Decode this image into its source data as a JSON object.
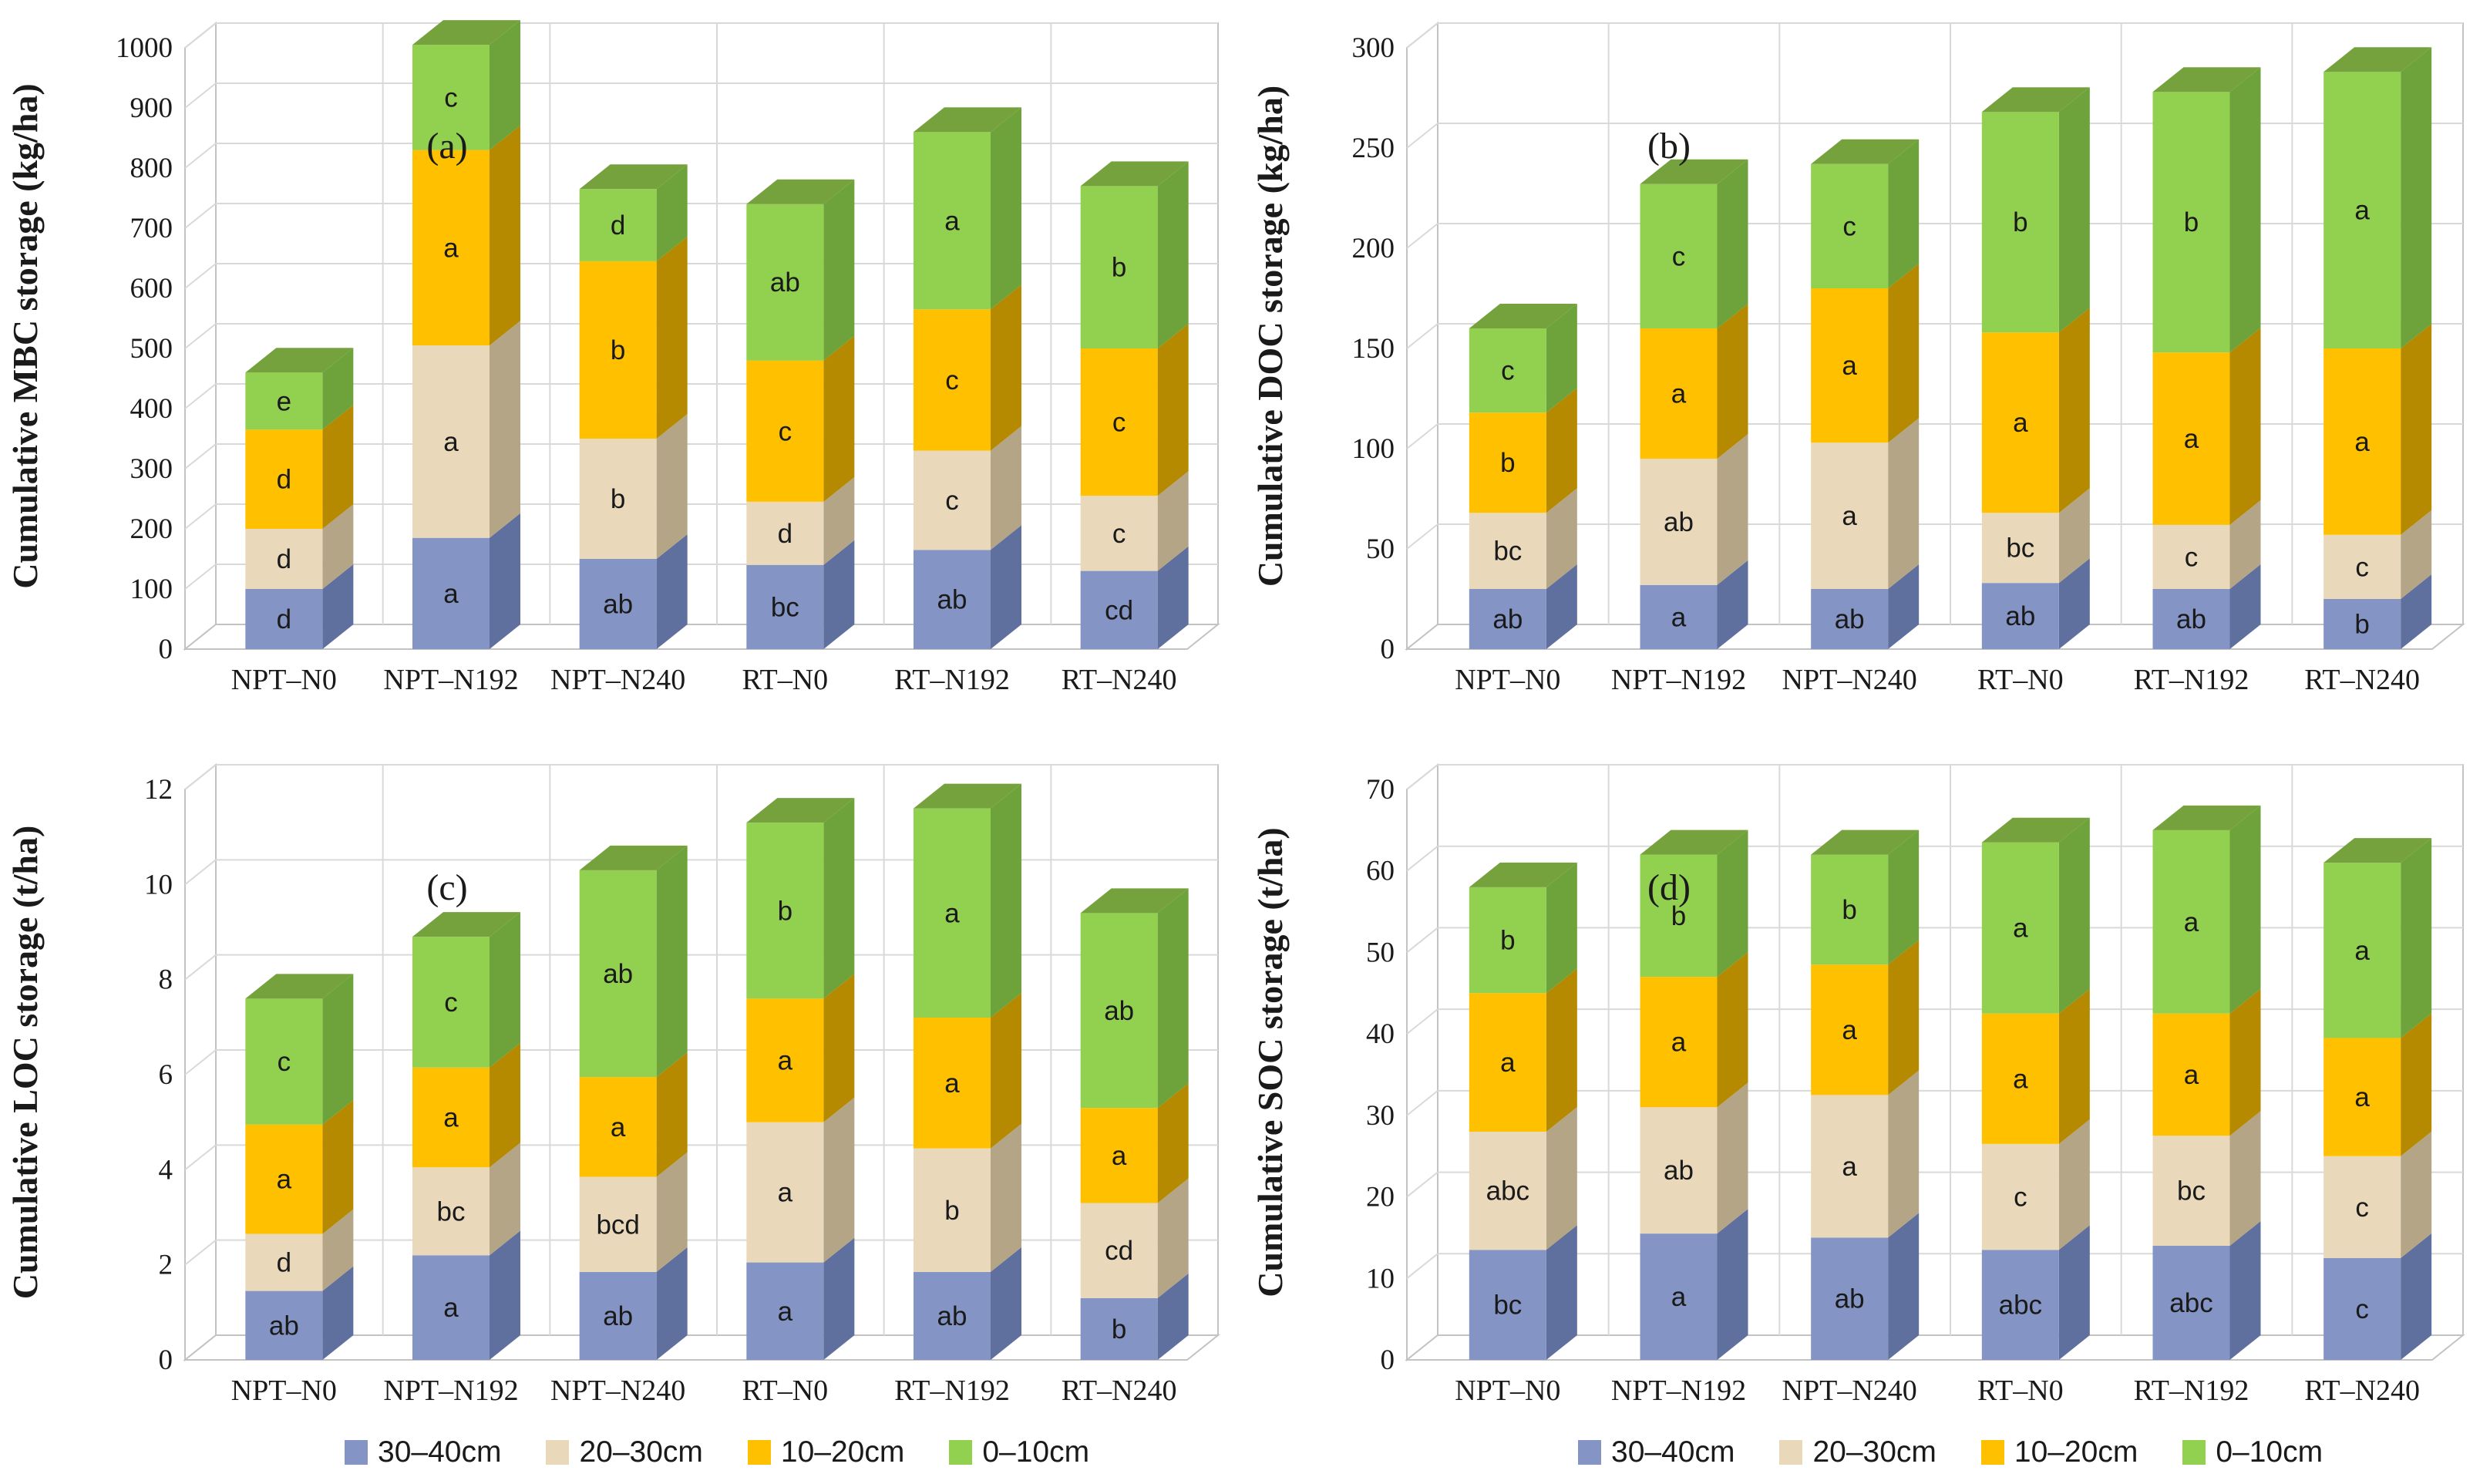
{
  "figure": {
    "description": "Four 3D stacked column charts of cumulative soil carbon storage by depth layer",
    "panel_letters": [
      "(a)",
      "(b)",
      "(c)",
      "(d)"
    ]
  },
  "colors": {
    "background": "#ffffff",
    "grid": "#d9d9d9",
    "wall_border": "#c3c3c3",
    "text": "#1a1a1a",
    "layers": [
      {
        "name": "30–40cm",
        "front": "#8494c4",
        "side": "#5f6f9e",
        "top": "#6e7eae"
      },
      {
        "name": "20–30cm",
        "front": "#e9d9ba",
        "side": "#b3a585",
        "top": "#cbbc9c"
      },
      {
        "name": "10–20cm",
        "front": "#ffc000",
        "side": "#b58900",
        "top": "#d9a400"
      },
      {
        "name": "0–10cm",
        "front": "#92d050",
        "side": "#6ea33b",
        "top": "#76a23e"
      }
    ]
  },
  "chart_data": [
    {
      "type": "bar",
      "stacked": true,
      "panel_label": "(a)",
      "title": "",
      "xlabel": "",
      "ylabel": "Cumulative MBC storage (kg/ha)",
      "ylim": [
        0,
        1000
      ],
      "ytick_step": 100,
      "grid": true,
      "legend_position": "none",
      "categories": [
        "NPT–N0",
        "NPT–N192",
        "NPT–N240",
        "RT–N0",
        "RT–N192",
        "RT–N240"
      ],
      "series": [
        {
          "name": "30–40cm",
          "values": [
            100,
            185,
            150,
            140,
            165,
            130
          ],
          "sig_labels": [
            "d",
            "a",
            "ab",
            "bc",
            "ab",
            "cd"
          ]
        },
        {
          "name": "20–30cm",
          "values": [
            100,
            320,
            200,
            105,
            165,
            125
          ],
          "sig_labels": [
            "d",
            "a",
            "b",
            "d",
            "c",
            "c"
          ]
        },
        {
          "name": "10–20cm",
          "values": [
            165,
            325,
            295,
            235,
            235,
            245
          ],
          "sig_labels": [
            "d",
            "a",
            "b",
            "c",
            "c",
            "c"
          ]
        },
        {
          "name": "0–10cm",
          "values": [
            95,
            175,
            120,
            260,
            295,
            270
          ],
          "sig_labels": [
            "e",
            "c",
            "d",
            "ab",
            "a",
            "b"
          ]
        }
      ]
    },
    {
      "type": "bar",
      "stacked": true,
      "panel_label": "(b)",
      "title": "",
      "xlabel": "",
      "ylabel": "Cumulative DOC storage (kg/ha)",
      "ylim": [
        0,
        300
      ],
      "ytick_step": 50,
      "grid": true,
      "legend_position": "none",
      "categories": [
        "NPT–N0",
        "NPT–N192",
        "NPT–N240",
        "RT–N0",
        "RT–N192",
        "RT–N240"
      ],
      "series": [
        {
          "name": "30–40cm",
          "values": [
            30,
            32,
            30,
            33,
            30,
            25
          ],
          "sig_labels": [
            "ab",
            "a",
            "ab",
            "ab",
            "ab",
            "b"
          ]
        },
        {
          "name": "20–30cm",
          "values": [
            38,
            63,
            73,
            35,
            32,
            32
          ],
          "sig_labels": [
            "bc",
            "ab",
            "a",
            "bc",
            "c",
            "c"
          ]
        },
        {
          "name": "10–20cm",
          "values": [
            50,
            65,
            77,
            90,
            86,
            93
          ],
          "sig_labels": [
            "b",
            "a",
            "a",
            "a",
            "a",
            "a"
          ]
        },
        {
          "name": "0–10cm",
          "values": [
            42,
            72,
            62,
            110,
            130,
            138
          ],
          "sig_labels": [
            "c",
            "c",
            "c",
            "b",
            "b",
            "a"
          ]
        }
      ]
    },
    {
      "type": "bar",
      "stacked": true,
      "panel_label": "(c)",
      "title": "",
      "xlabel": "",
      "ylabel": "Cumulative LOC storage (t/ha)",
      "ylim": [
        0,
        12
      ],
      "ytick_step": 2,
      "grid": true,
      "legend_position": "bottom",
      "categories": [
        "NPT–N0",
        "NPT–N192",
        "NPT–N240",
        "RT–N0",
        "RT–N192",
        "RT–N240"
      ],
      "series": [
        {
          "name": "30–40cm",
          "values": [
            1.45,
            2.2,
            1.85,
            2.05,
            1.85,
            1.3
          ],
          "sig_labels": [
            "ab",
            "a",
            "ab",
            "a",
            "ab",
            "b"
          ]
        },
        {
          "name": "20–30cm",
          "values": [
            1.2,
            1.85,
            2.0,
            2.95,
            2.6,
            2.0
          ],
          "sig_labels": [
            "d",
            "bc",
            "bcd",
            "a",
            "b",
            "cd"
          ]
        },
        {
          "name": "10–20cm",
          "values": [
            2.3,
            2.1,
            2.1,
            2.6,
            2.75,
            2.0
          ],
          "sig_labels": [
            "a",
            "a",
            "a",
            "a",
            "a",
            "a"
          ]
        },
        {
          "name": "0–10cm",
          "values": [
            2.65,
            2.75,
            4.35,
            3.7,
            4.4,
            4.1
          ],
          "sig_labels": [
            "c",
            "c",
            "ab",
            "b",
            "a",
            "ab"
          ]
        }
      ]
    },
    {
      "type": "bar",
      "stacked": true,
      "panel_label": "(d)",
      "title": "",
      "xlabel": "",
      "ylabel": "Cumulative SOC storage (t/ha)",
      "ylim": [
        0,
        70
      ],
      "ytick_step": 10,
      "grid": true,
      "legend_position": "bottom",
      "categories": [
        "NPT–N0",
        "NPT–N192",
        "NPT–N240",
        "RT–N0",
        "RT–N192",
        "RT–N240"
      ],
      "series": [
        {
          "name": "30–40cm",
          "values": [
            13.5,
            15.5,
            15,
            13.5,
            14,
            12.5
          ],
          "sig_labels": [
            "bc",
            "a",
            "ab",
            "abc",
            "abc",
            "c"
          ]
        },
        {
          "name": "20–30cm",
          "values": [
            14.5,
            15.5,
            17.5,
            13,
            13.5,
            12.5
          ],
          "sig_labels": [
            "abc",
            "ab",
            "a",
            "c",
            "bc",
            "c"
          ]
        },
        {
          "name": "10–20cm",
          "values": [
            17,
            16,
            16,
            16,
            15,
            14.5
          ],
          "sig_labels": [
            "a",
            "a",
            "a",
            "a",
            "a",
            "a"
          ]
        },
        {
          "name": "0–10cm",
          "values": [
            13,
            15,
            13.5,
            21,
            22.5,
            21.5
          ],
          "sig_labels": [
            "b",
            "b",
            "b",
            "a",
            "a",
            "a"
          ]
        }
      ]
    }
  ]
}
